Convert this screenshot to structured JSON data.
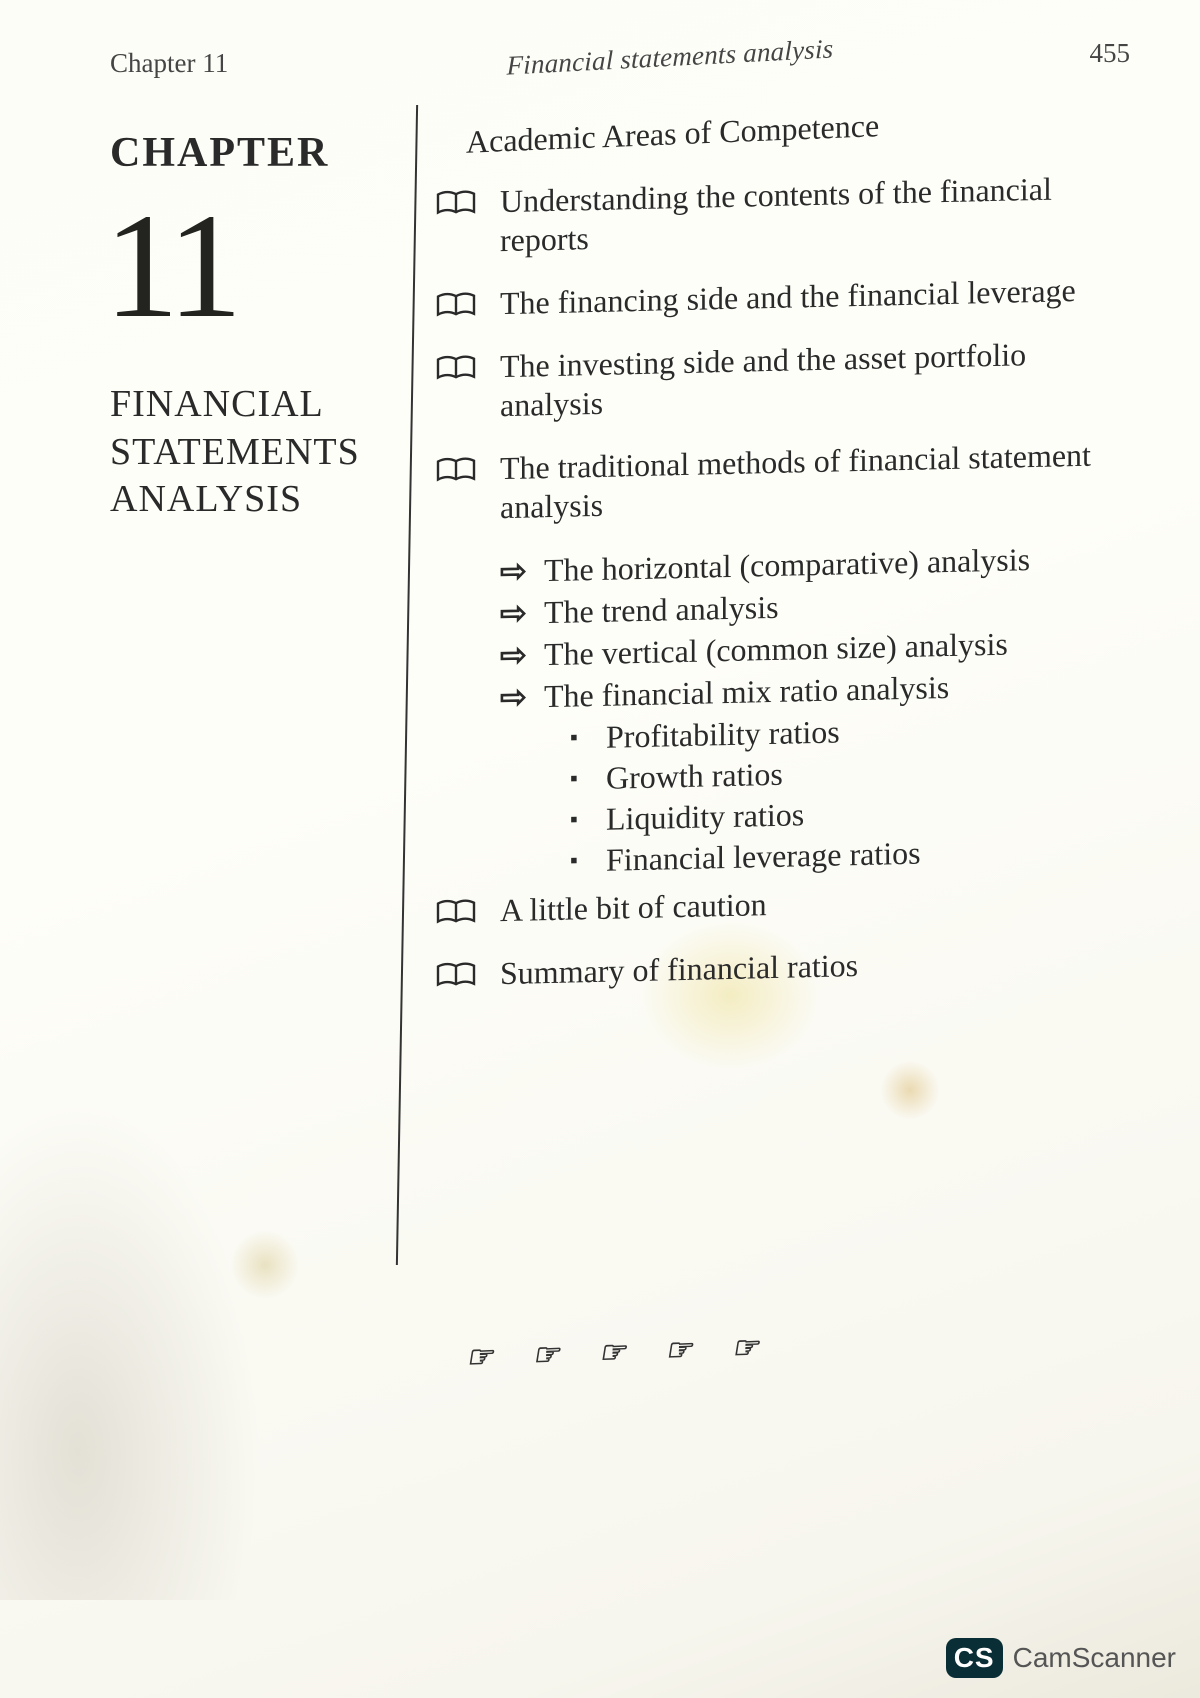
{
  "runningHead": {
    "left": "Chapter 11",
    "center": "Financial statements analysis",
    "pageNumber": "455"
  },
  "leftCol": {
    "chapterWord": "CHAPTER",
    "chapterNumber": "11",
    "title": "FINANCIAL STATEMENTS ANALYSIS"
  },
  "rightCol": {
    "heading": "Academic Areas of Competence",
    "topics": [
      {
        "text": "Understanding the contents of the financial reports"
      },
      {
        "text": "The financing side and the financial leverage"
      },
      {
        "text": "The investing side and the asset portfolio analysis"
      },
      {
        "text": "The traditional methods of financial statement analysis",
        "arrows": [
          "The horizontal (comparative) analysis",
          "The trend analysis",
          "The vertical (common size) analysis",
          "The financial mix ratio analysis"
        ],
        "bullets": [
          "Profitability ratios",
          "Growth ratios",
          "Liquidity ratios",
          "Financial leverage ratios"
        ]
      },
      {
        "text": "A little bit of caution"
      },
      {
        "text": "Summary of financial ratios"
      }
    ]
  },
  "decoration": "☞ ☞ ☞ ☞ ☞",
  "watermark": {
    "badge": "CS",
    "text": "CamScanner"
  },
  "glyphs": {
    "arrow": "⇨",
    "bullet": "▪"
  },
  "colors": {
    "text": "#2a2a2a",
    "divider": "#333333",
    "badgeBg": "#0a2e36"
  }
}
